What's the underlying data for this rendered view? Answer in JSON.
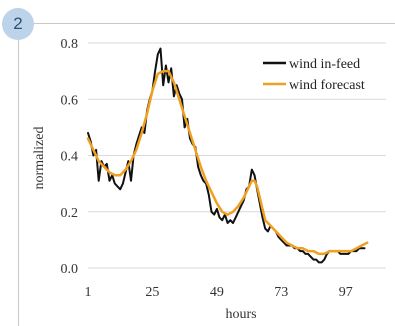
{
  "panel": {
    "number": "2"
  },
  "chart_data": {
    "type": "line",
    "xlabel": "hours",
    "ylabel": "normalized",
    "xlim": [
      1,
      112
    ],
    "ylim": [
      -0.02,
      0.82
    ],
    "x_ticks": [
      1,
      25,
      49,
      73,
      97
    ],
    "y_ticks": [
      0.0,
      0.2,
      0.4,
      0.6,
      0.8
    ],
    "y_tick_labels": [
      "0.0",
      "0.2",
      "0.4",
      "0.6",
      "0.8"
    ],
    "grid": "horizontal",
    "legend_position": "top-right",
    "series": [
      {
        "name": "wind in-feed",
        "color": "#111111",
        "points": [
          [
            1,
            0.48
          ],
          [
            2,
            0.45
          ],
          [
            3,
            0.4
          ],
          [
            4,
            0.42
          ],
          [
            5,
            0.31
          ],
          [
            6,
            0.38
          ],
          [
            7,
            0.36
          ],
          [
            8,
            0.37
          ],
          [
            9,
            0.31
          ],
          [
            10,
            0.33
          ],
          [
            11,
            0.3
          ],
          [
            12,
            0.29
          ],
          [
            13,
            0.28
          ],
          [
            14,
            0.3
          ],
          [
            15,
            0.34
          ],
          [
            16,
            0.38
          ],
          [
            17,
            0.31
          ],
          [
            18,
            0.4
          ],
          [
            19,
            0.44
          ],
          [
            20,
            0.47
          ],
          [
            21,
            0.5
          ],
          [
            22,
            0.48
          ],
          [
            23,
            0.56
          ],
          [
            24,
            0.6
          ],
          [
            25,
            0.63
          ],
          [
            26,
            0.7
          ],
          [
            27,
            0.76
          ],
          [
            28,
            0.78
          ],
          [
            29,
            0.65
          ],
          [
            30,
            0.72
          ],
          [
            31,
            0.66
          ],
          [
            32,
            0.71
          ],
          [
            33,
            0.61
          ],
          [
            34,
            0.65
          ],
          [
            35,
            0.62
          ],
          [
            36,
            0.6
          ],
          [
            37,
            0.5
          ],
          [
            38,
            0.53
          ],
          [
            39,
            0.46
          ],
          [
            40,
            0.44
          ],
          [
            41,
            0.43
          ],
          [
            42,
            0.36
          ],
          [
            43,
            0.33
          ],
          [
            44,
            0.31
          ],
          [
            45,
            0.3
          ],
          [
            46,
            0.26
          ],
          [
            47,
            0.2
          ],
          [
            48,
            0.19
          ],
          [
            49,
            0.21
          ],
          [
            50,
            0.18
          ],
          [
            51,
            0.17
          ],
          [
            52,
            0.19
          ],
          [
            53,
            0.16
          ],
          [
            54,
            0.17
          ],
          [
            55,
            0.16
          ],
          [
            56,
            0.18
          ],
          [
            57,
            0.2
          ],
          [
            58,
            0.22
          ],
          [
            59,
            0.24
          ],
          [
            60,
            0.28
          ],
          [
            61,
            0.29
          ],
          [
            62,
            0.35
          ],
          [
            63,
            0.33
          ],
          [
            64,
            0.28
          ],
          [
            65,
            0.23
          ],
          [
            66,
            0.18
          ],
          [
            67,
            0.14
          ],
          [
            68,
            0.13
          ],
          [
            69,
            0.15
          ],
          [
            70,
            0.14
          ],
          [
            71,
            0.13
          ],
          [
            72,
            0.11
          ],
          [
            73,
            0.1
          ],
          [
            74,
            0.09
          ],
          [
            75,
            0.08
          ],
          [
            76,
            0.08
          ],
          [
            77,
            0.08
          ],
          [
            78,
            0.07
          ],
          [
            79,
            0.07
          ],
          [
            80,
            0.06
          ],
          [
            81,
            0.06
          ],
          [
            82,
            0.05
          ],
          [
            83,
            0.05
          ],
          [
            84,
            0.04
          ],
          [
            85,
            0.03
          ],
          [
            86,
            0.03
          ],
          [
            87,
            0.02
          ],
          [
            88,
            0.02
          ],
          [
            89,
            0.03
          ],
          [
            90,
            0.05
          ],
          [
            91,
            0.06
          ],
          [
            92,
            0.06
          ],
          [
            93,
            0.06
          ],
          [
            94,
            0.06
          ],
          [
            95,
            0.05
          ],
          [
            96,
            0.05
          ],
          [
            97,
            0.05
          ],
          [
            98,
            0.05
          ],
          [
            99,
            0.06
          ],
          [
            100,
            0.06
          ],
          [
            101,
            0.06
          ],
          [
            102,
            0.07
          ],
          [
            103,
            0.07
          ],
          [
            104,
            0.07
          ]
        ]
      },
      {
        "name": "wind forecast",
        "color": "#f0a020",
        "points": [
          [
            1,
            0.46
          ],
          [
            3,
            0.42
          ],
          [
            5,
            0.38
          ],
          [
            7,
            0.36
          ],
          [
            9,
            0.34
          ],
          [
            11,
            0.33
          ],
          [
            13,
            0.33
          ],
          [
            15,
            0.35
          ],
          [
            17,
            0.38
          ],
          [
            19,
            0.42
          ],
          [
            21,
            0.48
          ],
          [
            23,
            0.55
          ],
          [
            25,
            0.63
          ],
          [
            27,
            0.69
          ],
          [
            29,
            0.7
          ],
          [
            31,
            0.7
          ],
          [
            33,
            0.66
          ],
          [
            35,
            0.6
          ],
          [
            37,
            0.54
          ],
          [
            39,
            0.48
          ],
          [
            41,
            0.42
          ],
          [
            43,
            0.36
          ],
          [
            45,
            0.31
          ],
          [
            47,
            0.27
          ],
          [
            49,
            0.23
          ],
          [
            51,
            0.2
          ],
          [
            53,
            0.19
          ],
          [
            55,
            0.2
          ],
          [
            57,
            0.22
          ],
          [
            59,
            0.25
          ],
          [
            61,
            0.29
          ],
          [
            62,
            0.31
          ],
          [
            63,
            0.31
          ],
          [
            64,
            0.29
          ],
          [
            65,
            0.25
          ],
          [
            66,
            0.21
          ],
          [
            67,
            0.17
          ],
          [
            69,
            0.15
          ],
          [
            71,
            0.13
          ],
          [
            73,
            0.11
          ],
          [
            75,
            0.09
          ],
          [
            77,
            0.08
          ],
          [
            79,
            0.07
          ],
          [
            81,
            0.07
          ],
          [
            83,
            0.06
          ],
          [
            85,
            0.06
          ],
          [
            87,
            0.05
          ],
          [
            89,
            0.05
          ],
          [
            91,
            0.06
          ],
          [
            93,
            0.06
          ],
          [
            95,
            0.06
          ],
          [
            97,
            0.06
          ],
          [
            99,
            0.06
          ],
          [
            101,
            0.07
          ],
          [
            103,
            0.08
          ],
          [
            105,
            0.09
          ]
        ]
      }
    ]
  }
}
